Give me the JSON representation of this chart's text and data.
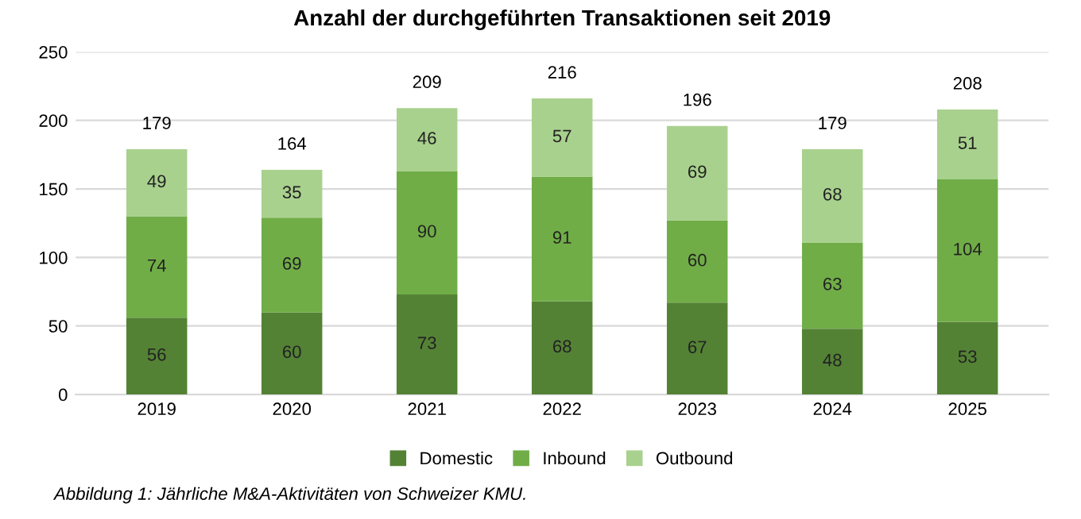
{
  "chart_data": {
    "type": "bar",
    "title": "Anzahl der durchgeführten Transaktionen seit 2019",
    "categories": [
      "2019",
      "2020",
      "2021",
      "2022",
      "2023",
      "2024",
      "2025"
    ],
    "series": [
      {
        "name": "Domestic",
        "color": "#548235",
        "values": [
          56,
          60,
          73,
          68,
          67,
          48,
          53
        ]
      },
      {
        "name": "Inbound",
        "color": "#70ad47",
        "values": [
          74,
          69,
          90,
          91,
          60,
          63,
          104
        ]
      },
      {
        "name": "Outbound",
        "color": "#a9d18e",
        "values": [
          49,
          35,
          46,
          57,
          69,
          68,
          51
        ]
      }
    ],
    "stacked": true,
    "data_labels": true,
    "totals": [
      "179",
      "164",
      "209",
      "216",
      "196",
      "179",
      "208"
    ],
    "ylim": [
      0,
      250
    ],
    "yticks": [
      0,
      50,
      100,
      150,
      200,
      250
    ],
    "grid": "y",
    "legend": "bottom",
    "annotations": [
      "Abbildung 1: Jährliche M&A-Aktivitäten von Schweizer KMU."
    ]
  }
}
